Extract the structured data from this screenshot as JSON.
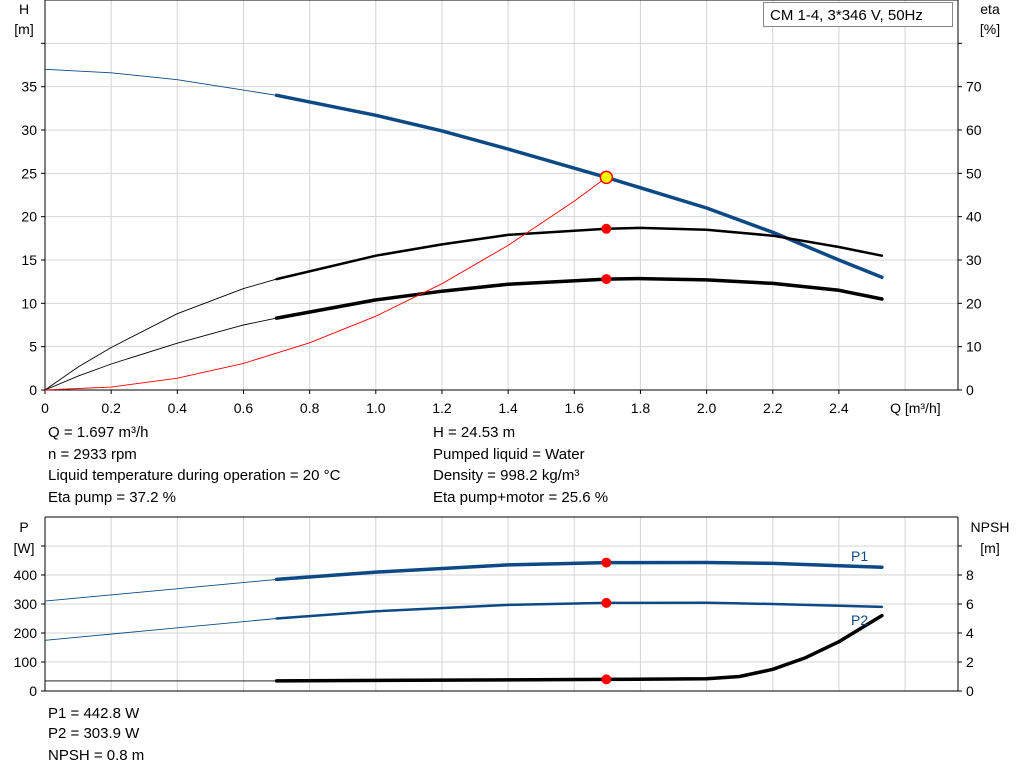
{
  "chart_data": [
    {
      "type": "line",
      "legend": "CM 1-4, 3*346 V, 50Hz",
      "xlabel": "Q [m³/h]",
      "ylabel": [
        "H",
        "[m]"
      ],
      "y2label": [
        "eta",
        "[%]"
      ],
      "xlim": [
        0,
        2.76
      ],
      "ylim": [
        0,
        45
      ],
      "y2lim": [
        0,
        90
      ],
      "grid": true,
      "xticks": [
        "0",
        "0.2",
        "0.4",
        "0.6",
        "0.8",
        "1.0",
        "1.2",
        "1.4",
        "1.6",
        "1.8",
        "2.0",
        "2.2",
        "2.4"
      ],
      "yticks": [
        "0",
        "5",
        "10",
        "15",
        "20",
        "25",
        "30",
        "35"
      ],
      "y2ticks": [
        "0",
        "10",
        "20",
        "30",
        "40",
        "50",
        "60",
        "70"
      ],
      "series": [
        {
          "id": "H",
          "axis": "left",
          "color": "#0d4a85",
          "x": [
            0,
            0.2,
            0.4,
            0.6,
            0.7,
            1.0,
            1.2,
            1.4,
            1.697,
            2.0,
            2.2,
            2.4,
            2.53
          ],
          "values": [
            37,
            36.6,
            35.8,
            34.6,
            34,
            31.7,
            29.9,
            27.8,
            24.53,
            21,
            18.2,
            15,
            13
          ]
        },
        {
          "id": "eta-pump",
          "axis": "right",
          "color": "#000000",
          "x": [
            0,
            0.1,
            0.2,
            0.4,
            0.6,
            0.7,
            1.0,
            1.2,
            1.4,
            1.697,
            1.8,
            2.0,
            2.2,
            2.4,
            2.53
          ],
          "values": [
            0,
            5.3,
            9.8,
            17.6,
            23.4,
            25.6,
            31,
            33.6,
            35.8,
            37.2,
            37.4,
            37,
            35.6,
            33,
            31
          ]
        },
        {
          "id": "eta-pump-motor",
          "axis": "right",
          "color": "#000000",
          "x": [
            0,
            0.1,
            0.2,
            0.4,
            0.6,
            0.7,
            1.0,
            1.2,
            1.4,
            1.697,
            1.8,
            2.0,
            2.2,
            2.4,
            2.53
          ],
          "values": [
            0,
            3.2,
            6,
            10.8,
            15,
            16.6,
            20.8,
            22.8,
            24.4,
            25.6,
            25.7,
            25.4,
            24.6,
            23,
            21
          ]
        },
        {
          "id": "system",
          "axis": "left",
          "color": "#ff0000",
          "x": [
            0,
            0.2,
            0.4,
            0.6,
            0.8,
            1.0,
            1.2,
            1.4,
            1.6,
            1.697
          ],
          "values": [
            0,
            0.34,
            1.36,
            3.07,
            5.45,
            8.52,
            12.26,
            16.69,
            21.8,
            24.53
          ]
        }
      ],
      "duty_point": {
        "Q": 1.697,
        "H": 24.53,
        "eta_pump": 37.2,
        "eta_pump_motor": 25.6
      }
    },
    {
      "type": "line",
      "ylabel": [
        "P",
        "[W]"
      ],
      "y2label": [
        "NPSH",
        "[m]"
      ],
      "xlim": [
        0,
        2.76
      ],
      "ylim": [
        0,
        600
      ],
      "y2lim": [
        0,
        12
      ],
      "grid": true,
      "yticks": [
        "0",
        "100",
        "200",
        "300",
        "400"
      ],
      "y2ticks": [
        "0",
        "2",
        "4",
        "6",
        "8"
      ],
      "series": [
        {
          "id": "P1",
          "name": "P1",
          "axis": "left",
          "color": "#0d4a85",
          "x": [
            0,
            0.7,
            1.0,
            1.4,
            1.697,
            2.0,
            2.2,
            2.53
          ],
          "values": [
            310,
            385,
            410,
            435,
            442.8,
            443,
            440,
            427
          ]
        },
        {
          "id": "P2",
          "name": "P2",
          "axis": "left",
          "color": "#0d4a85",
          "x": [
            0,
            0.7,
            1.0,
            1.4,
            1.697,
            2.0,
            2.2,
            2.53
          ],
          "values": [
            175,
            250,
            275,
            297,
            303.9,
            304,
            300,
            290
          ]
        },
        {
          "id": "NPSH",
          "axis": "right",
          "color": "#000000",
          "x": [
            0,
            0.7,
            1.697,
            2.0,
            2.1,
            2.2,
            2.3,
            2.4,
            2.53
          ],
          "values": [
            0.7,
            0.7,
            0.8,
            0.85,
            1.0,
            1.5,
            2.3,
            3.4,
            5.2
          ]
        }
      ],
      "duty_point": {
        "Q": 1.697,
        "P1": 442.8,
        "P2": 303.9,
        "NPSH": 0.8
      }
    }
  ],
  "info": {
    "left": [
      "Q = 1.697 m³/h",
      "n = 2933 rpm",
      "Liquid temperature during operation = 20 °C",
      "Eta pump = 37.2 %"
    ],
    "right": [
      "H = 24.53 m",
      "Pumped liquid = Water",
      "Density = 998.2 kg/m³",
      "Eta pump+motor = 25.6 %"
    ],
    "bottom": [
      "P1 = 442.8 W",
      "P2 = 303.9 W",
      "NPSH = 0.8 m"
    ]
  }
}
